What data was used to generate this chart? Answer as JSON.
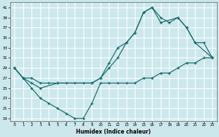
{
  "title": "",
  "xlabel": "Humidex (Indice chaleur)",
  "bg_color": "#cce8ec",
  "grid_color": "#ffffff",
  "line_color": "#1a6b6b",
  "xlim": [
    -0.5,
    23.5
  ],
  "ylim": [
    18.5,
    42
  ],
  "yticks": [
    19,
    21,
    23,
    25,
    27,
    29,
    31,
    33,
    35,
    37,
    39,
    41
  ],
  "xticks": [
    0,
    1,
    2,
    3,
    4,
    5,
    6,
    7,
    8,
    9,
    10,
    11,
    12,
    13,
    14,
    15,
    16,
    17,
    18,
    19,
    20,
    21,
    22,
    23
  ],
  "line1_x": [
    0,
    1,
    2,
    3,
    4,
    5,
    6,
    7,
    8,
    9,
    10,
    11,
    12,
    13,
    14,
    15,
    16,
    17,
    18,
    19,
    20,
    21,
    22,
    23
  ],
  "line1_y": [
    29,
    27,
    27,
    26,
    26,
    26,
    26,
    26,
    26,
    26,
    27,
    29,
    31,
    34,
    36,
    40,
    41,
    39,
    38,
    39,
    37,
    34,
    34,
    31
  ],
  "line2_x": [
    0,
    1,
    2,
    3,
    4,
    5,
    6,
    7,
    8,
    9,
    10,
    11,
    12,
    13,
    14,
    15,
    16,
    17,
    18,
    19,
    20,
    21,
    22,
    23
  ],
  "line2_y": [
    29,
    27,
    25,
    23,
    22,
    21,
    20,
    19,
    19,
    22,
    26,
    26,
    26,
    26,
    26,
    27,
    27,
    28,
    28,
    29,
    30,
    30,
    31,
    31
  ],
  "line3_x": [
    0,
    1,
    2,
    3,
    5,
    9,
    10,
    11,
    12,
    13,
    14,
    15,
    16,
    17,
    19,
    20,
    21,
    23
  ],
  "line3_y": [
    29,
    27,
    26,
    25,
    26,
    26,
    27,
    30,
    33,
    34,
    36,
    40,
    41,
    38,
    39,
    37,
    34,
    31
  ]
}
